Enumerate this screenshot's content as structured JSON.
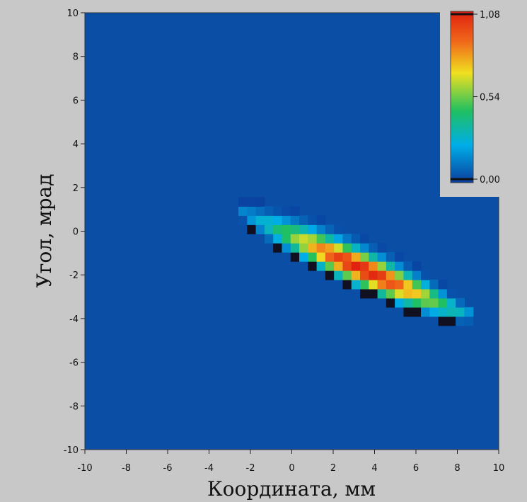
{
  "chart_data": {
    "type": "heatmap",
    "title": "",
    "xlabel": "Координата, мм",
    "ylabel": "Угол, мрад",
    "xlim": [
      -10,
      10
    ],
    "ylim": [
      -10,
      10
    ],
    "xticks": [
      "-10",
      "-8",
      "-6",
      "-4",
      "-2",
      "0",
      "2",
      "4",
      "6",
      "8",
      "10"
    ],
    "yticks": [
      "10",
      "8",
      "6",
      "4",
      "2",
      "0",
      "-2",
      "-4",
      "-6",
      "-8",
      "-10"
    ],
    "background_value": 0.0,
    "colorbar": {
      "min": 0.0,
      "max": 1.08,
      "tick_labels": [
        "1,08",
        "0,54",
        "0,00"
      ],
      "tick_values": [
        1.08,
        0.54,
        0.0
      ],
      "placement": "top-right",
      "colors": [
        "#0a3e9e",
        "#00aee8",
        "#20c060",
        "#f0e020",
        "#f06a1a",
        "#e02010"
      ]
    },
    "distribution": {
      "shape": "tilted elongated ellipse (phase-space beam portrait)",
      "center": [
        2.8,
        -1.6
      ],
      "x_extent": [
        -3.0,
        8.6
      ],
      "slope_mrad_per_mm": -0.43,
      "peak_value": 1.08,
      "peak_location": [
        3.2,
        -1.9
      ],
      "pixel_size_mm": 0.42
    },
    "grid": false
  }
}
